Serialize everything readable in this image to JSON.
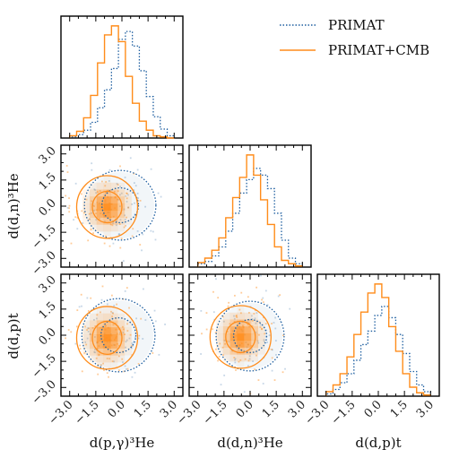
{
  "legend": {
    "entries": [
      {
        "label": "PRIMAT",
        "color": "#1f5fa0",
        "style": "dotted"
      },
      {
        "label": "PRIMAT+CMB",
        "color": "#ff8c1a",
        "style": "solid"
      }
    ]
  },
  "axes": {
    "tick_values": [
      -3.0,
      -1.5,
      0.0,
      1.5,
      3.0
    ],
    "tick_labels": [
      "−3.0",
      "−1.5",
      "0.0",
      "1.5",
      "3.0"
    ],
    "x_labels": [
      "d(p,γ)³He",
      "d(d,n)³He",
      "d(d,p)t"
    ],
    "y_labels": [
      "d(d,n)³He",
      "d(d,p)t"
    ]
  },
  "chart_data": {
    "type": "corner",
    "parameters": [
      "d(p,γ)³He",
      "d(d,n)³He",
      "d(d,p)t"
    ],
    "range": [
      -3.5,
      3.5
    ],
    "colors": {
      "PRIMAT": "#1f5fa0",
      "PRIMAT+CMB": "#ff8c1a"
    },
    "histograms": [
      {
        "parameter": "d(p,γ)³He",
        "bins": [
          -3.0,
          -2.6,
          -2.2,
          -1.8,
          -1.4,
          -1.0,
          -0.6,
          -0.2,
          0.2,
          0.6,
          1.0,
          1.4,
          1.8,
          2.2,
          2.6,
          3.0
        ],
        "series": [
          {
            "name": "PRIMAT",
            "values": [
              1,
              3,
              7,
              14,
              27,
              43,
              62,
              88,
              95,
              82,
              60,
              37,
              19,
              8,
              2
            ]
          },
          {
            "name": "PRIMAT+CMB",
            "values": [
              2,
              6,
              18,
              38,
              67,
              92,
              100,
              86,
              55,
              31,
              15,
              7,
              2,
              1,
              0
            ]
          }
        ]
      },
      {
        "parameter": "d(d,n)³He",
        "bins": [
          -3.0,
          -2.6,
          -2.2,
          -1.8,
          -1.4,
          -1.0,
          -0.6,
          -0.2,
          0.2,
          0.6,
          1.0,
          1.4,
          1.8,
          2.2,
          2.6,
          3.0
        ],
        "series": [
          {
            "name": "PRIMAT",
            "values": [
              3,
              5,
              10,
              18,
              32,
              48,
              66,
              78,
              88,
              82,
              70,
              48,
              24,
              8,
              3
            ]
          },
          {
            "name": "PRIMAT+CMB",
            "values": [
              4,
              8,
              15,
              26,
              44,
              62,
              80,
              100,
              82,
              60,
              38,
              18,
              6,
              3,
              1
            ]
          }
        ]
      },
      {
        "parameter": "d(d,p)t",
        "bins": [
          -3.0,
          -2.6,
          -2.2,
          -1.8,
          -1.4,
          -1.0,
          -0.6,
          -0.2,
          0.2,
          0.6,
          1.0,
          1.4,
          1.8,
          2.2,
          2.6,
          3.0
        ],
        "series": [
          {
            "name": "PRIMAT",
            "values": [
              2,
              6,
              12,
              20,
              32,
              46,
              58,
              72,
              80,
              70,
              55,
              38,
              22,
              10,
              4
            ]
          },
          {
            "name": "PRIMAT+CMB",
            "values": [
              4,
              10,
              20,
              35,
              55,
              75,
              92,
              100,
              88,
              62,
              40,
              20,
              8,
              3,
              1
            ]
          }
        ]
      }
    ],
    "contours": [
      {
        "x": "d(p,γ)³He",
        "y": "d(d,n)³He",
        "PRIMAT": {
          "center": [
            -0.1,
            0.05
          ],
          "radii_1sigma": [
            1.05,
            1.0
          ],
          "radii_2sigma": [
            2.05,
            2.0
          ]
        },
        "PRIMAT+CMB": {
          "center": [
            -0.85,
            -0.05
          ],
          "radii_1sigma": [
            0.85,
            0.9
          ],
          "radii_2sigma": [
            1.75,
            1.8
          ]
        }
      },
      {
        "x": "d(p,γ)³He",
        "y": "d(d,p)t",
        "PRIMAT": {
          "center": [
            -0.2,
            0.0
          ],
          "radii_1sigma": [
            1.0,
            1.0
          ],
          "radii_2sigma": [
            2.1,
            2.1
          ]
        },
        "PRIMAT+CMB": {
          "center": [
            -0.85,
            -0.15
          ],
          "radii_1sigma": [
            0.85,
            0.95
          ],
          "radii_2sigma": [
            1.75,
            1.8
          ]
        }
      },
      {
        "x": "d(d,n)³He",
        "y": "d(d,p)t",
        "PRIMAT": {
          "center": [
            0.0,
            -0.05
          ],
          "radii_1sigma": [
            0.95,
            0.95
          ],
          "radii_2sigma": [
            1.95,
            2.0
          ]
        },
        "PRIMAT+CMB": {
          "center": [
            -0.55,
            -0.1
          ],
          "radii_1sigma": [
            0.85,
            0.9
          ],
          "radii_2sigma": [
            1.75,
            1.8
          ]
        }
      }
    ]
  }
}
